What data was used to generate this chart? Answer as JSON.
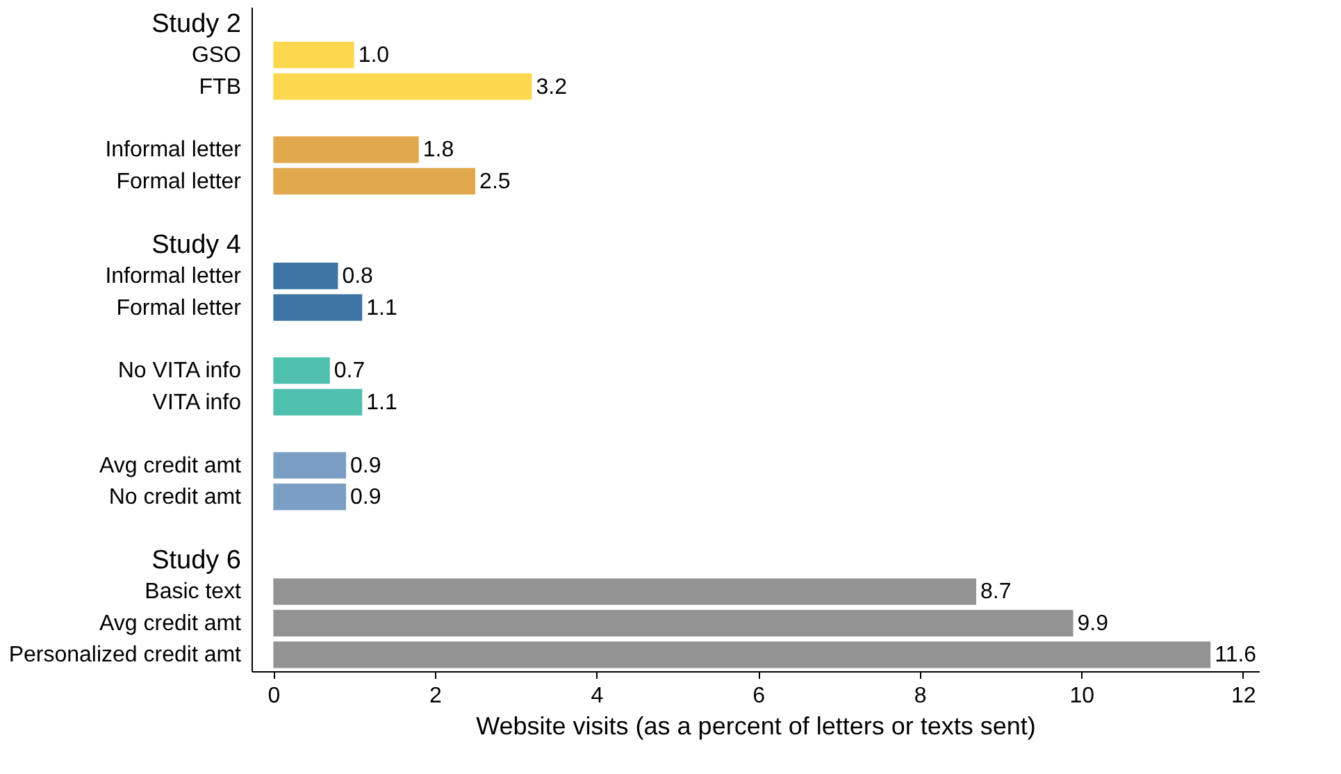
{
  "chart_data": {
    "type": "bar",
    "orientation": "horizontal",
    "categories": [
      "Study 2",
      "GSO",
      "FTB",
      null,
      "Informal letter",
      "Formal letter",
      null,
      "Study 4",
      "Informal letter",
      "Formal letter",
      null,
      "No VITA info",
      "VITA info",
      null,
      "Avg credit amt",
      "No credit amt",
      null,
      "Study 6",
      "Basic text",
      "Avg credit amt",
      "Personalized credit amt"
    ],
    "values": [
      null,
      1.0,
      3.2,
      null,
      1.8,
      2.5,
      null,
      null,
      0.8,
      1.1,
      null,
      0.7,
      1.1,
      null,
      0.9,
      0.9,
      null,
      null,
      8.7,
      9.9,
      11.6
    ],
    "value_labels": [
      null,
      "1.0",
      "3.2",
      null,
      "1.8",
      "2.5",
      null,
      null,
      "0.8",
      "1.1",
      null,
      "0.7",
      "1.1",
      null,
      "0.9",
      "0.9",
      null,
      null,
      "8.7",
      "9.9",
      "11.6"
    ],
    "colors": [
      null,
      "#fdd84f",
      "#fdd84f",
      null,
      "#e1a84d",
      "#e1a84d",
      null,
      null,
      "#3d74a3",
      "#3d74a3",
      null,
      "#50c0ae",
      "#50c0ae",
      null,
      "#7b9fc4",
      "#7b9fc4",
      null,
      null,
      "#939393",
      "#939393",
      "#939393"
    ],
    "xlabel": "Website visits (as a percent of letters or texts sent)",
    "xlim": [
      -0.27,
      12.2
    ],
    "xticks": [
      0,
      2,
      4,
      6,
      8,
      10,
      12
    ],
    "grid": false
  }
}
